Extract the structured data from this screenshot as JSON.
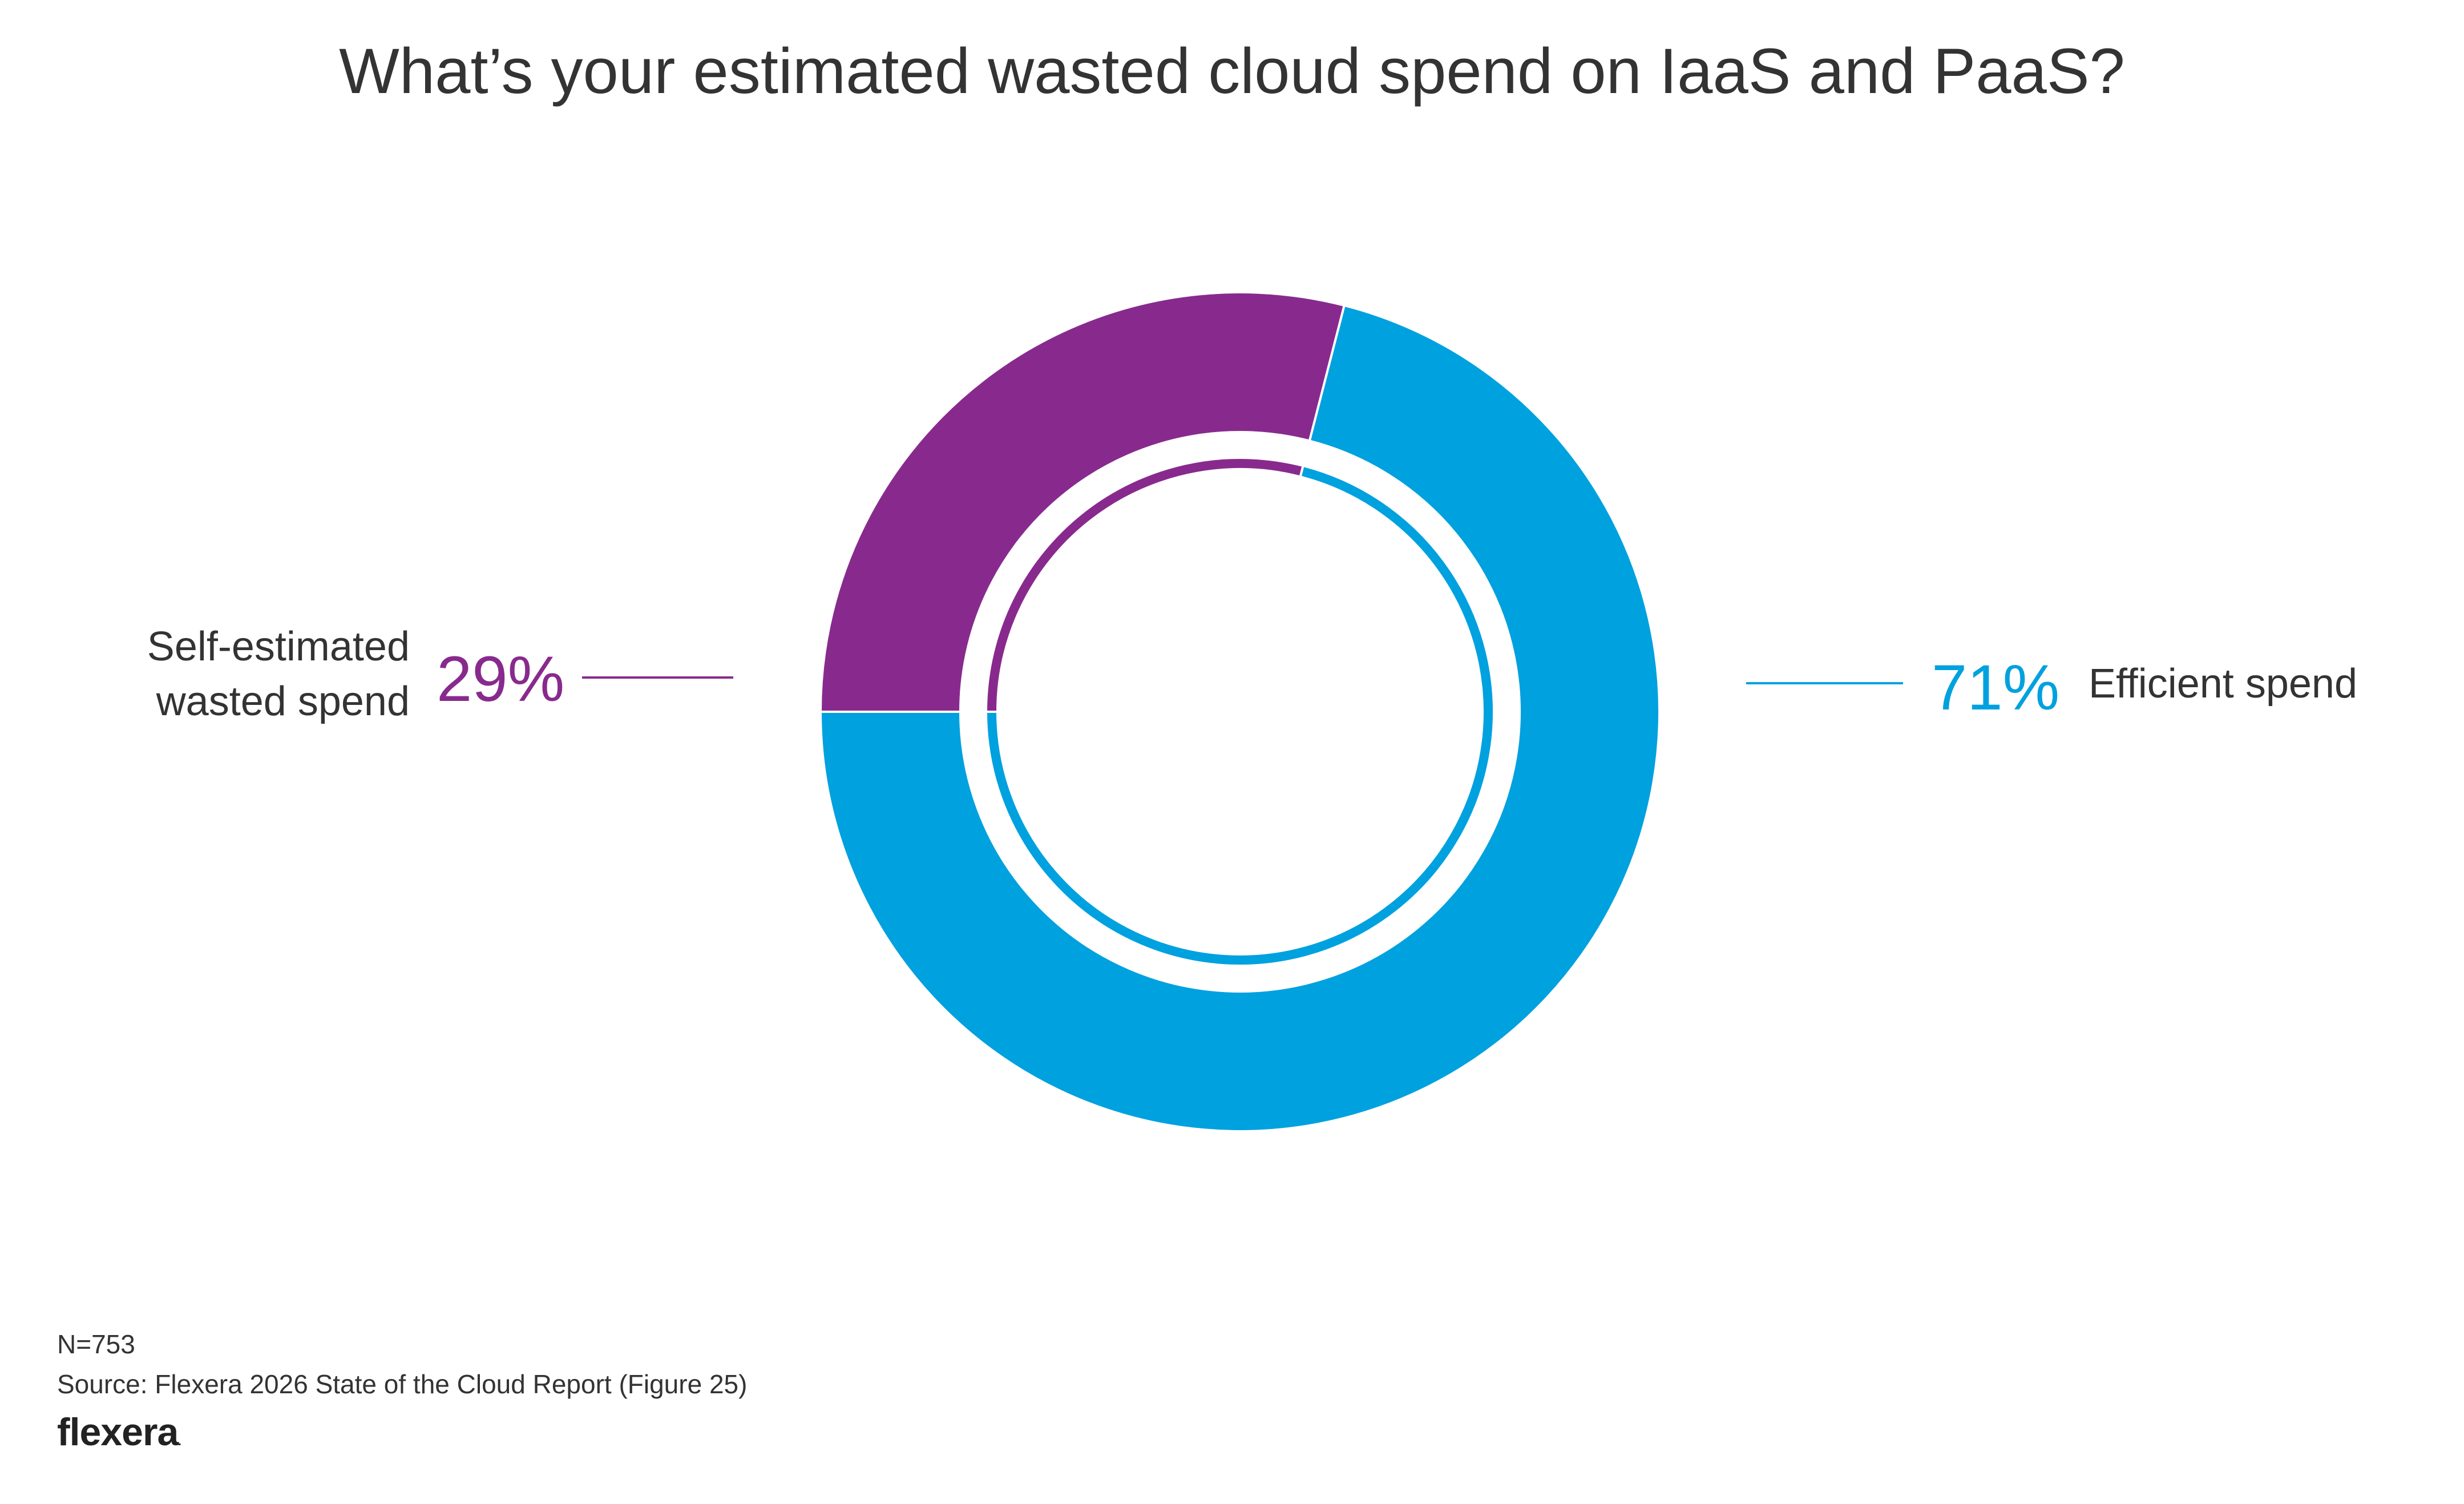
{
  "chart_data": {
    "type": "pie",
    "variant": "donut",
    "title": "What’s your estimated wasted cloud spend on IaaS and PaaS?",
    "series": [
      {
        "name": "Self-estimated wasted spend",
        "value": 29,
        "label": "29%",
        "color": "#882a8d",
        "legend_lines": [
          "Self-estimated",
          "wasted spend"
        ]
      },
      {
        "name": "Efficient spend",
        "value": 71,
        "label": "71%",
        "color": "#00a1df"
      }
    ],
    "legend": "none"
  },
  "footer": {
    "n": "N=753",
    "source": "Source: Flexera 2026 State of the Cloud Report (Figure 25)",
    "logo_text": "flexera",
    "logo_dot": "."
  }
}
